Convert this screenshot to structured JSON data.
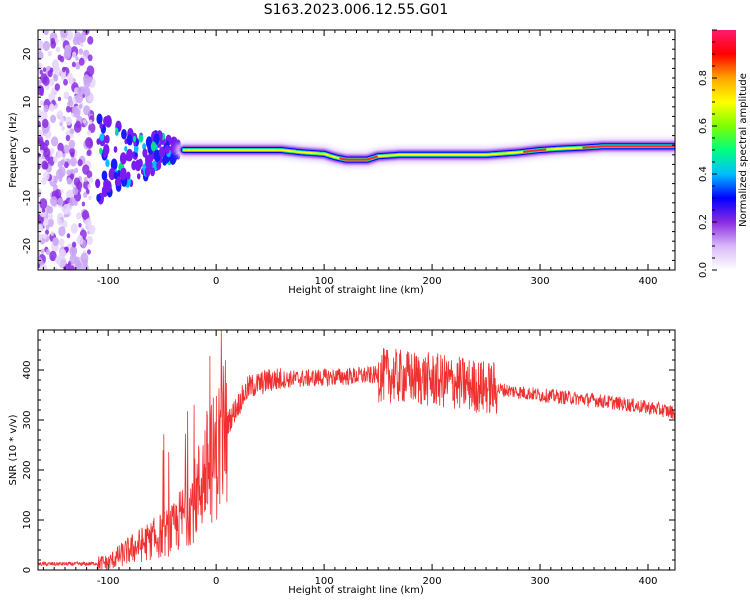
{
  "title": "S163.2023.006.12.55.G01",
  "chart_data": [
    {
      "type": "heatmap",
      "xlabel": "Height of straight line (km)",
      "ylabel": "Frequency (Hz)",
      "xlim": [
        -165,
        425
      ],
      "ylim": [
        -25,
        25
      ],
      "xticks": [
        -100,
        0,
        100,
        200,
        300,
        400
      ],
      "yticks": [
        -20,
        -10,
        0,
        10,
        20
      ],
      "colorbar": {
        "label": "Normalized spectral amplitude",
        "range": [
          0,
          1
        ],
        "ticks": [
          0.0,
          0.2,
          0.4,
          0.6,
          0.8
        ],
        "colormap": "rainbow",
        "colors": [
          "#ffffff",
          "#d8b8f8",
          "#8a2be2",
          "#0000ff",
          "#00bfff",
          "#00ff7f",
          "#7fff00",
          "#ffff00",
          "#ffa500",
          "#ff0000",
          "#ff1a6e"
        ]
      },
      "trace": {
        "x": [
          -110,
          -90,
          -70,
          -50,
          -35,
          -20,
          0,
          20,
          40,
          60,
          80,
          100,
          110,
          120,
          140,
          150,
          170,
          200,
          250,
          280,
          300,
          320,
          340,
          360,
          400,
          425
        ],
        "frequency_hz": [
          -2,
          -1,
          -1.5,
          0,
          0,
          0,
          0,
          0,
          0,
          0,
          -0.5,
          -0.8,
          -1.5,
          -2,
          -2,
          -1.3,
          -1,
          -1,
          -1,
          -0.5,
          0,
          0.3,
          0.5,
          0.8,
          0.8,
          0.8
        ]
      }
    },
    {
      "type": "line",
      "xlabel": "Height of straight line (km)",
      "ylabel": "SNR (10 * v/v)",
      "xlim": [
        -165,
        425
      ],
      "ylim": [
        0,
        480
      ],
      "xticks": [
        -100,
        0,
        100,
        200,
        300,
        400
      ],
      "yticks": [
        0,
        100,
        200,
        300,
        400
      ],
      "color": "#f03030",
      "envelope": {
        "x": [
          -165,
          -120,
          -100,
          -80,
          -60,
          -40,
          -20,
          -10,
          0,
          10,
          20,
          30,
          50,
          100,
          150,
          180,
          200,
          220,
          250,
          300,
          350,
          400,
          425
        ],
        "y": [
          12,
          12,
          15,
          40,
          60,
          80,
          140,
          200,
          230,
          290,
          330,
          365,
          380,
          385,
          390,
          385,
          380,
          375,
          365,
          350,
          340,
          325,
          315
        ]
      }
    }
  ]
}
